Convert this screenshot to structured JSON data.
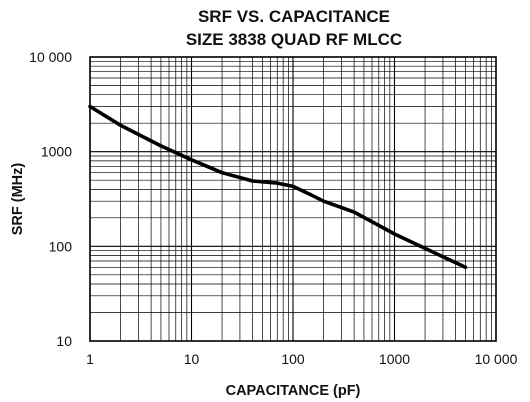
{
  "chart_data": {
    "type": "line",
    "title": [
      "SRF VS. CAPACITANCE",
      "SIZE 3838 QUAD RF MLCC"
    ],
    "xlabel": "CAPACITANCE (pF)",
    "ylabel": "SRF (MHz)",
    "xscale": "log",
    "yscale": "log",
    "xlim": [
      1,
      10000
    ],
    "ylim": [
      10,
      10000
    ],
    "grid": true,
    "xticks": [
      {
        "value": 1,
        "label": "1"
      },
      {
        "value": 10,
        "label": "10"
      },
      {
        "value": 100,
        "label": "100"
      },
      {
        "value": 1000,
        "label": "1000"
      },
      {
        "value": 10000,
        "label": "10 000"
      }
    ],
    "yticks": [
      {
        "value": 10,
        "label": "10"
      },
      {
        "value": 100,
        "label": "100"
      },
      {
        "value": 1000,
        "label": "1000"
      },
      {
        "value": 10000,
        "label": "10 000"
      }
    ],
    "series": [
      {
        "x": [
          1,
          2,
          5,
          10,
          20,
          40,
          70,
          100,
          150,
          200,
          400,
          1000,
          2000,
          5000
        ],
        "y": [
          3000,
          1900,
          1150,
          820,
          600,
          490,
          465,
          430,
          350,
          300,
          230,
          135,
          95,
          60
        ]
      }
    ]
  }
}
